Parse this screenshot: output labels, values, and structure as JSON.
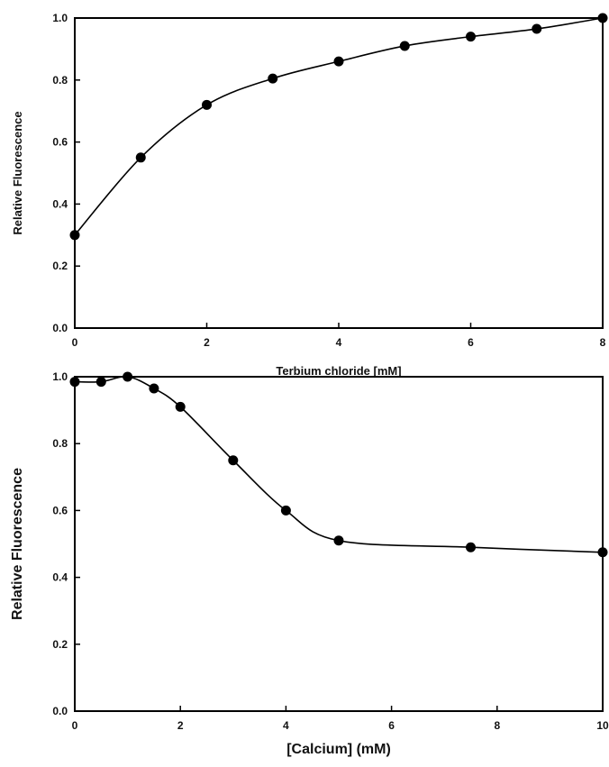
{
  "chart_data": [
    {
      "type": "line",
      "xlabel": "Terbium chloride [mM]",
      "ylabel": "Relative Fluorescence",
      "xlim": [
        0,
        8
      ],
      "ylim": [
        0,
        1.0
      ],
      "xticks": [
        "0",
        "2",
        "4",
        "6",
        "8"
      ],
      "yticks": [
        "0.0",
        "0.2",
        "0.4",
        "0.6",
        "0.8",
        "1.0"
      ],
      "grid": false,
      "series": [
        {
          "x": [
            0,
            1,
            2,
            3,
            4,
            5,
            6,
            7,
            8
          ],
          "y": [
            0.3,
            0.55,
            0.72,
            0.805,
            0.86,
            0.91,
            0.94,
            0.965,
            1.0
          ]
        }
      ]
    },
    {
      "type": "line",
      "xlabel": "[Calcium] (mM)",
      "ylabel": "Relative Fluorescence",
      "xlim": [
        0,
        10
      ],
      "ylim": [
        0,
        1.0
      ],
      "xticks": [
        "0",
        "2",
        "4",
        "6",
        "8",
        "10"
      ],
      "yticks": [
        "0.0",
        "0.2",
        "0.4",
        "0.6",
        "0.8",
        "1.0"
      ],
      "grid": false,
      "series": [
        {
          "x": [
            0,
            0.5,
            1,
            1.5,
            2,
            3,
            4,
            5,
            7.5,
            10
          ],
          "y": [
            0.985,
            0.985,
            1.0,
            0.965,
            0.91,
            0.75,
            0.6,
            0.51,
            0.49,
            0.475
          ]
        }
      ]
    }
  ]
}
